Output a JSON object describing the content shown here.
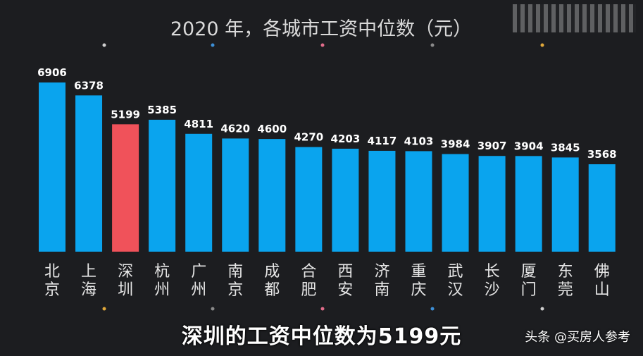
{
  "chart_data": {
    "type": "bar",
    "title": "2020 年，各城市工资中位数（元）",
    "categories": [
      "北京",
      "上海",
      "深圳",
      "杭州",
      "广州",
      "南京",
      "成都",
      "合肥",
      "西安",
      "济南",
      "重庆",
      "武汉",
      "长沙",
      "厦门",
      "东莞",
      "佛山"
    ],
    "values": [
      6906,
      6378,
      5199,
      5385,
      4811,
      4620,
      4600,
      4270,
      4203,
      4117,
      4103,
      3984,
      3907,
      3904,
      3845,
      3568
    ],
    "highlight_index": 2,
    "colors": {
      "bar": "#0aa4ee",
      "highlight": "#f0525a",
      "background": "#1c1d20"
    },
    "ylim": [
      0,
      6906
    ],
    "grid": false
  },
  "caption": "深圳的工资中位数为5199元",
  "watermark": "头条 @买房人参考"
}
